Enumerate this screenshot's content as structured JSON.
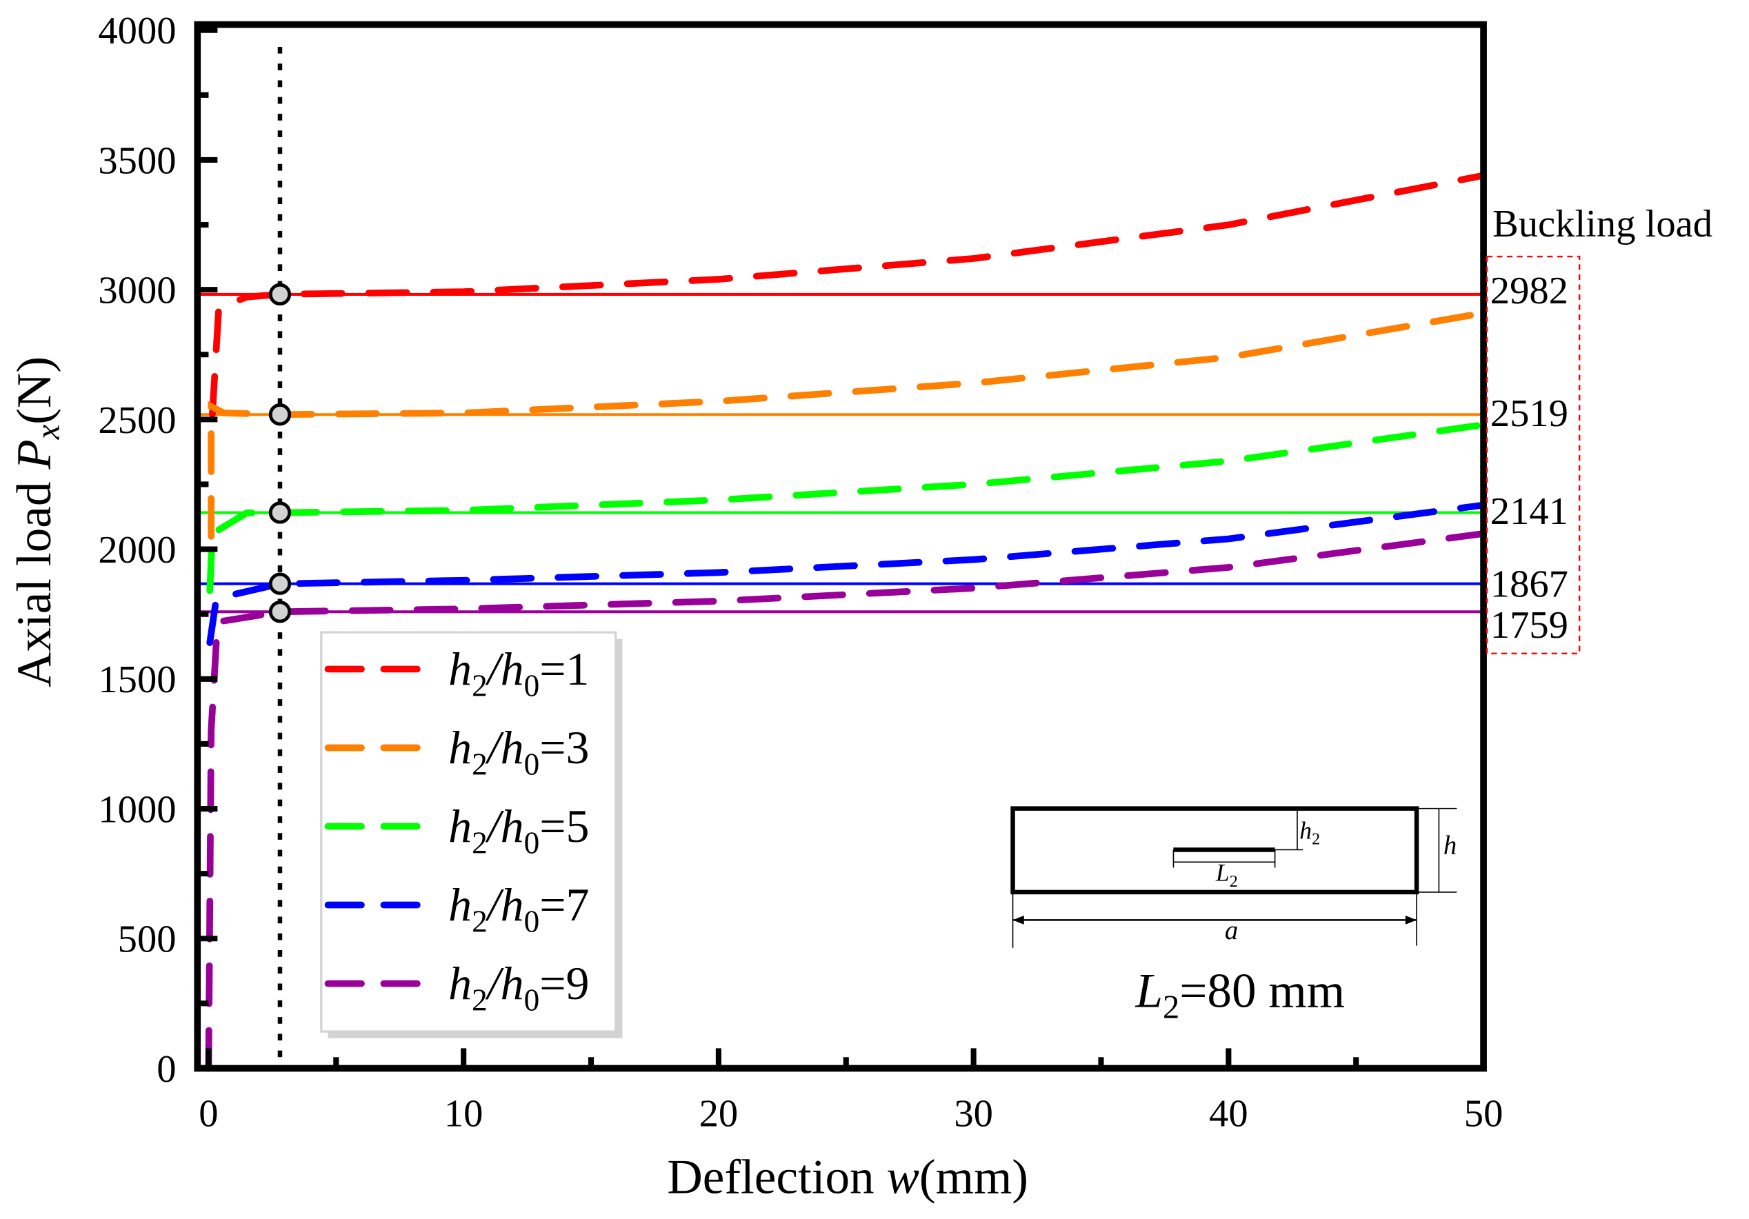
{
  "chart_data": {
    "type": "line",
    "xlabel": "Deflection w(mm)",
    "xlabel_parts": {
      "pre": "Deflection ",
      "var": "w",
      "post": "(mm)"
    },
    "ylabel": "Axial load Px(N)",
    "ylabel_parts": {
      "pre": "Axial load ",
      "var": "P",
      "sub": "x",
      "post": "(N)"
    },
    "xlim": [
      -0.4,
      50
    ],
    "ylim": [
      0,
      4000
    ],
    "x_ticks": [
      0,
      10,
      20,
      30,
      40,
      50
    ],
    "x_tick_labels": [
      "0",
      "10",
      "20",
      "30",
      "40",
      "50"
    ],
    "y_ticks": [
      0,
      500,
      1000,
      1500,
      2000,
      2500,
      3000,
      3500,
      4000
    ],
    "y_tick_labels": [
      "0",
      "500",
      "1000",
      "1500",
      "2000",
      "2500",
      "3000",
      "3500",
      "4000"
    ],
    "grid": false,
    "legend_position": "left",
    "marker_x": 2.8,
    "buckling_title": "Buckling load",
    "series": [
      {
        "name": "h2/h0=1",
        "ratio": "1",
        "color": "#ff0000",
        "buckling": 2982,
        "x": [
          0.15,
          0.4,
          1.5,
          2.8,
          10,
          20,
          30,
          40,
          50
        ],
        "y": [
          2520,
          2930,
          2972,
          2982,
          2992,
          3040,
          3120,
          3250,
          3440
        ]
      },
      {
        "name": "h2/h0=3",
        "ratio": "3",
        "color": "#ff8000",
        "buckling": 2519,
        "x": [
          0.1,
          0.1,
          0.6,
          2.8,
          10,
          20,
          30,
          40,
          50
        ],
        "y": [
          2050,
          2550,
          2525,
          2519,
          2525,
          2570,
          2640,
          2740,
          2910
        ]
      },
      {
        "name": "h2/h0=5",
        "ratio": "5",
        "color": "#00ff00",
        "buckling": 2141,
        "x": [
          0.05,
          0.15,
          1.5,
          2.8,
          10,
          20,
          30,
          40,
          50
        ],
        "y": [
          1840,
          2060,
          2140,
          2141,
          2150,
          2190,
          2250,
          2340,
          2480
        ]
      },
      {
        "name": "h2/h0=7",
        "ratio": "7",
        "color": "#0000ff",
        "buckling": 1867,
        "x": [
          0.05,
          0.3,
          2.8,
          10,
          20,
          30,
          40,
          50
        ],
        "y": [
          1640,
          1810,
          1867,
          1880,
          1910,
          1960,
          2040,
          2170
        ]
      },
      {
        "name": "h2/h0=9",
        "ratio": "9",
        "color": "#990099",
        "buckling": 1759,
        "x": [
          0,
          0.1,
          0.35,
          2.8,
          10,
          20,
          30,
          40,
          50
        ],
        "y": [
          0,
          1300,
          1720,
          1759,
          1770,
          1800,
          1850,
          1930,
          2060
        ]
      }
    ],
    "inset": {
      "label_h2": "h",
      "label_h2_sub": "2",
      "label_h": "h",
      "label_L2": "L",
      "label_L2_sub": "2",
      "label_a": "a",
      "caption_var": "L",
      "caption_sub": "2",
      "caption_rest": "=80 mm"
    },
    "legend_text": {
      "h": "h",
      "sub2": "2",
      "slash": "/",
      "sub0": "0",
      "eq": "="
    }
  }
}
